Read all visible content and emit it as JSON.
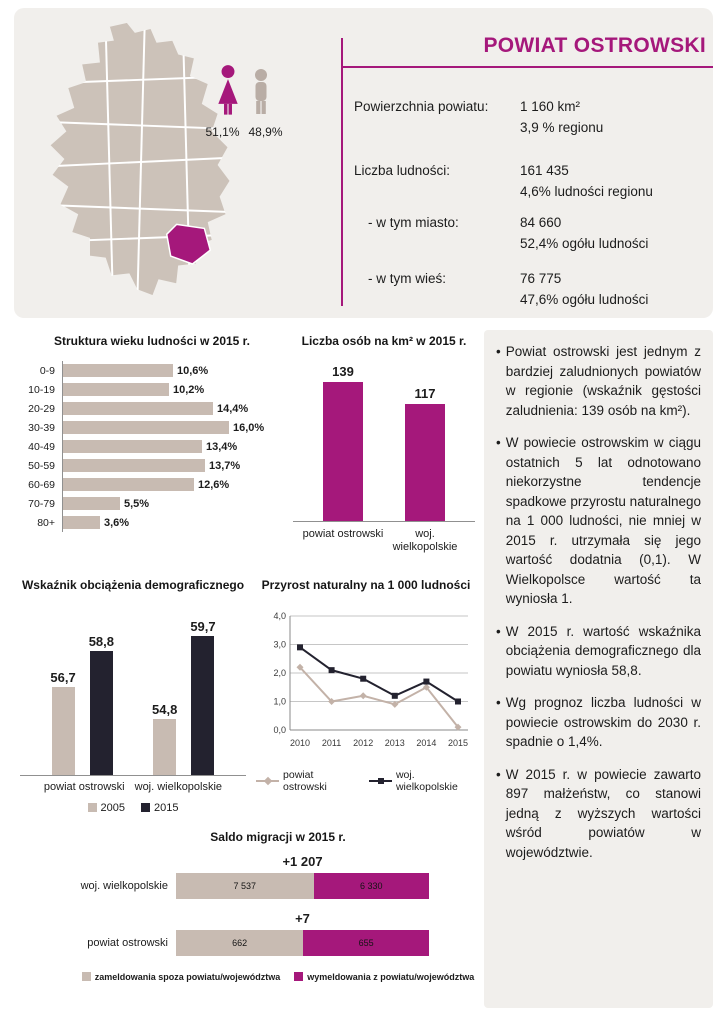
{
  "colors": {
    "magenta": "#a5187b",
    "beige": "#c8bbb2",
    "beige_line": "#c3b2a8",
    "dark": "#23222f",
    "panel_bg": "#f1efec"
  },
  "header": {
    "title": "POWIAT OSTROWSKI",
    "gender": {
      "female": "51,1%",
      "male": "48,9%"
    },
    "stats": [
      {
        "label": "Powierzchnia powiatu:",
        "value": "1 160 km²",
        "sub": "3,9 % regionu"
      },
      {
        "label": "Liczba ludności:",
        "value": "161 435",
        "sub": "4,6% ludności regionu"
      },
      {
        "label": "- w tym  miasto:",
        "value": "84 660",
        "sub": "52,4% ogółu ludności"
      },
      {
        "label": "- w tym wieś:",
        "value": "76 775",
        "sub": "47,6% ogółu ludności"
      }
    ]
  },
  "chart_data": [
    {
      "id": "age_structure",
      "type": "bar",
      "orientation": "horizontal",
      "title": "Struktura wieku ludności w 2015 r.",
      "categories": [
        "0-9",
        "10-19",
        "20-29",
        "30-39",
        "40-49",
        "50-59",
        "60-69",
        "70-79",
        "80+"
      ],
      "values": [
        10.6,
        10.2,
        14.4,
        16.0,
        13.4,
        13.7,
        12.6,
        5.5,
        3.6
      ],
      "labels": [
        "10,6%",
        "10,2%",
        "14,4%",
        "16,0%",
        "13,4%",
        "13,7%",
        "12,6%",
        "5,5%",
        "3,6%"
      ],
      "xlim": [
        0,
        16
      ]
    },
    {
      "id": "density",
      "type": "bar",
      "title": "Liczba osób na km² w 2015 r.",
      "categories": [
        "powiat ostrowski",
        "woj. wielkopolskie"
      ],
      "values": [
        139,
        117
      ],
      "labels": [
        "139",
        "117"
      ]
    },
    {
      "id": "dependency",
      "type": "bar",
      "title": "Wskaźnik obciążenia demograficznego",
      "categories": [
        "powiat ostrowski",
        "woj. wielkopolskie"
      ],
      "series": [
        {
          "name": "2005",
          "values": [
            56.7,
            54.8
          ],
          "labels": [
            "56,7",
            "54,8"
          ]
        },
        {
          "name": "2015",
          "values": [
            58.8,
            59.7
          ],
          "labels": [
            "58,8",
            "59,7"
          ]
        }
      ]
    },
    {
      "id": "natural_increase",
      "type": "line",
      "title": "Przyrost naturalny na 1 000 ludności",
      "x": [
        "2010",
        "2011",
        "2012",
        "2013",
        "2014",
        "2015"
      ],
      "series": [
        {
          "name": "powiat ostrowski",
          "values": [
            2.2,
            1.0,
            1.2,
            0.9,
            1.5,
            0.1
          ]
        },
        {
          "name": "woj. wielkopolskie",
          "values": [
            2.9,
            2.1,
            1.8,
            1.2,
            1.7,
            1.0
          ]
        }
      ],
      "ylim": [
        0,
        4
      ],
      "yticks": [
        "0,0",
        "1,0",
        "2,0",
        "3,0",
        "4,0"
      ],
      "grid": true,
      "legend_position": "bottom"
    },
    {
      "id": "migration",
      "type": "bar",
      "orientation": "horizontal-stacked",
      "title": "Saldo migracji w 2015 r.",
      "rows": [
        {
          "category": "woj. wielkopolskie",
          "total_label": "+1 207",
          "in": 7537,
          "out": 6330,
          "in_label": "7 537",
          "out_label": "6 330"
        },
        {
          "category": "powiat ostrowski",
          "total_label": "+7",
          "in": 662,
          "out": 655,
          "in_label": "662",
          "out_label": "655"
        }
      ],
      "legend": [
        "zameldowania spoza powiatu/województwa",
        "wymeldowania z powiatu/województwa"
      ]
    }
  ],
  "bullets": [
    "Powiat ostrowski jest jednym z bardziej zaludnionych powiatów w regionie (wskaźnik gęstości zaludnienia: 139 osób na km²).",
    "W powiecie ostrowskim w ciągu ostatnich 5 lat odnotowano niekorzystne tendencje spadkowe przyrostu naturalnego na 1 000 ludności, nie mniej w 2015 r. utrzymała się jego wartość dodatnia (0,1). W Wielkopolsce wartość ta wyniosła 1.",
    "W 2015 r. wartość wskaźnika obciążenia demograficznego dla powiatu wyniosła 58,8.",
    "Wg prognoz liczba ludności w powiecie ostrowskim do 2030 r. spadnie o 1,4%.",
    "W 2015 r. w powiecie zawarto 897 małżeństw, co stanowi jedną z wyższych wartości wśród powiatów w województwie."
  ]
}
